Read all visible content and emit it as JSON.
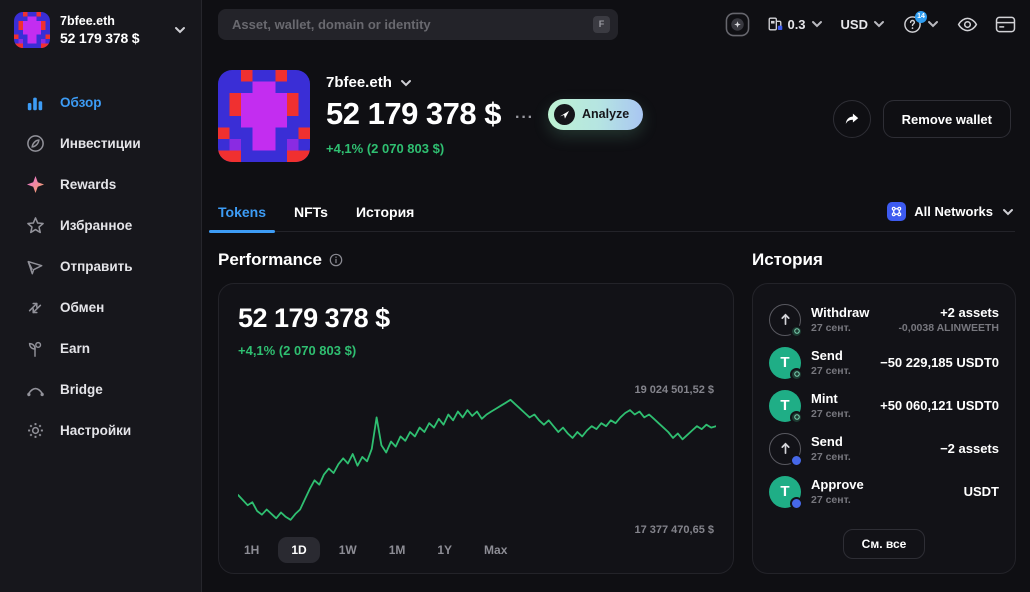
{
  "colors": {
    "accent_blue": "#3d9cf5",
    "positive_green": "#2fbf71",
    "chart_line": "#2fbf71",
    "analyze_gradient_from": "#bdf2d3",
    "analyze_gradient_to": "#a9c6f2",
    "network_icon_blue": "#3d5bf0",
    "token_teal": "#1fae86"
  },
  "sidebar": {
    "wallet_name": "7bfee.eth",
    "wallet_balance": "52 179 378 $",
    "items": [
      {
        "label": "Обзор",
        "icon": "overview-bars-icon",
        "active": true
      },
      {
        "label": "Инвестиции",
        "icon": "invest-compass-icon",
        "active": false
      },
      {
        "label": "Rewards",
        "icon": "rewards-sparkle-icon",
        "active": false
      },
      {
        "label": "Избранное",
        "icon": "favorites-star-icon",
        "active": false
      },
      {
        "label": "Отправить",
        "icon": "send-plane-icon",
        "active": false
      },
      {
        "label": "Обмен",
        "icon": "swap-arrows-icon",
        "active": false
      },
      {
        "label": "Earn",
        "icon": "earn-sprout-icon",
        "active": false
      },
      {
        "label": "Bridge",
        "icon": "bridge-arc-icon",
        "active": false
      },
      {
        "label": "Настройки",
        "icon": "settings-gear-icon",
        "active": false
      }
    ]
  },
  "topbar": {
    "search_placeholder": "Asset, wallet, domain or identity",
    "search_shortcut": "F",
    "gas_value": "0.3",
    "currency": "USD",
    "help_badge": "14"
  },
  "header": {
    "wallet_name": "7bfee.eth",
    "balance": "52 179 378 $",
    "more_label": "···",
    "analyze_label": "Analyze",
    "change": "+4,1% (2 070 803 $)",
    "remove_wallet_label": "Remove wallet"
  },
  "tabs": {
    "items": [
      {
        "label": "Tokens",
        "active": true
      },
      {
        "label": "NFTs",
        "active": false
      },
      {
        "label": "История",
        "active": false
      }
    ],
    "network_filter_label": "All Networks"
  },
  "performance": {
    "title": "Performance",
    "balance": "52 179 378 $",
    "change": "+4,1% (2 070 803 $)",
    "high_label": "19 024 501,52 $",
    "low_label": "17 377 470,65 $",
    "ranges": [
      {
        "label": "1H",
        "active": false
      },
      {
        "label": "1D",
        "active": true
      },
      {
        "label": "1W",
        "active": false
      },
      {
        "label": "1M",
        "active": false
      },
      {
        "label": "1Y",
        "active": false
      },
      {
        "label": "Max",
        "active": false
      }
    ],
    "chart": {
      "type": "line",
      "color": "#2fbf71",
      "unit": "USD (millions)",
      "ymin": 17.377,
      "ymax": 19.045,
      "values": [
        17.72,
        17.65,
        17.58,
        17.62,
        17.5,
        17.45,
        17.52,
        17.46,
        17.4,
        17.48,
        17.42,
        17.38,
        17.46,
        17.52,
        17.66,
        17.8,
        17.92,
        17.86,
        18.0,
        18.08,
        18.02,
        18.14,
        18.22,
        18.15,
        18.28,
        18.12,
        18.24,
        18.18,
        18.35,
        18.78,
        18.4,
        18.3,
        18.45,
        18.38,
        18.52,
        18.46,
        18.58,
        18.52,
        18.64,
        18.58,
        18.7,
        18.64,
        18.76,
        18.68,
        18.82,
        18.74,
        18.86,
        18.78,
        18.88,
        18.8,
        18.86,
        18.76,
        18.82,
        18.86,
        18.9,
        18.94,
        18.98,
        19.02,
        18.96,
        18.9,
        18.84,
        18.78,
        18.82,
        18.74,
        18.68,
        18.74,
        18.66,
        18.58,
        18.64,
        18.56,
        18.5,
        18.58,
        18.52,
        18.6,
        18.66,
        18.62,
        18.7,
        18.66,
        18.74,
        18.7,
        18.78,
        18.84,
        18.88,
        18.82,
        18.86,
        18.78,
        18.82,
        18.76,
        18.7,
        18.64,
        18.58,
        18.5,
        18.56,
        18.48,
        18.54,
        18.6,
        18.66,
        18.62,
        18.68,
        18.64,
        18.66
      ]
    }
  },
  "history": {
    "title": "История",
    "see_all_label": "См. все",
    "items": [
      {
        "action": "Withdraw",
        "date": "27 сент.",
        "value": "+2 assets",
        "subvalue": "-0,0038 ALINWEETH",
        "icon": "withdraw-arrow-icon"
      },
      {
        "action": "Send",
        "date": "27 сент.",
        "value": "−50 229,185 USDT0",
        "subvalue": "",
        "icon": "usdt-token-icon"
      },
      {
        "action": "Mint",
        "date": "27 сент.",
        "value": "+50 060,121 USDT0",
        "subvalue": "",
        "icon": "usdt-token-icon"
      },
      {
        "action": "Send",
        "date": "27 сент.",
        "value": "−2 assets",
        "subvalue": "",
        "icon": "send-arrow-icon"
      },
      {
        "action": "Approve",
        "date": "27 сент.",
        "value": "USDT",
        "subvalue": "",
        "icon": "usdt-token-icon"
      }
    ]
  }
}
